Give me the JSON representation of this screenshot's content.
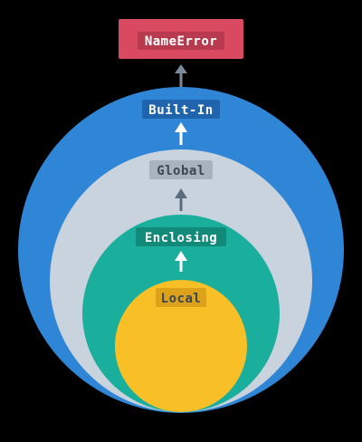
{
  "diagram": {
    "error_box": {
      "label": "NameError",
      "fill": "#d94a60",
      "label_bg": "#b83a4e",
      "text_color": "#ffffff"
    },
    "scopes": [
      {
        "id": "built-in",
        "label": "Built-In",
        "fill": "#2f86d6",
        "label_bg": "#1f64ad",
        "text_color": "#ffffff"
      },
      {
        "id": "global",
        "label": "Global",
        "fill": "#c9d3dd",
        "label_bg": "#a8b3be",
        "text_color": "#3b4652"
      },
      {
        "id": "enclosing",
        "label": "Enclosing",
        "fill": "#1aaf9c",
        "label_bg": "#128a7a",
        "text_color": "#ffffff"
      },
      {
        "id": "local",
        "label": "Local",
        "fill": "#f8c026",
        "label_bg": "#dca21a",
        "text_color": "#3b4652"
      }
    ],
    "arrow_colors": {
      "light": "#ffffff",
      "dark": "#5a6b7b",
      "outside": "#7a8a99"
    },
    "background": "#000000"
  }
}
